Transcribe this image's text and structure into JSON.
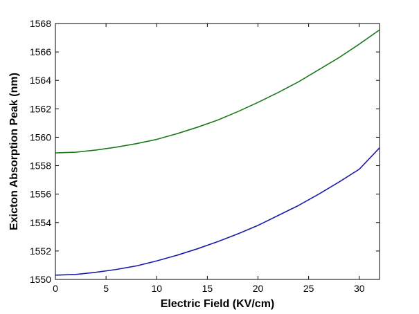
{
  "chart_data": {
    "type": "line",
    "title": "",
    "xlabel": "Electric Field (KV/cm)",
    "ylabel": "Exicton Absorption Peak (nm)",
    "xlim": [
      0,
      32
    ],
    "ylim": [
      1550,
      1568
    ],
    "xticks": [
      0,
      5,
      10,
      15,
      20,
      25,
      30
    ],
    "yticks": [
      1550,
      1552,
      1554,
      1556,
      1558,
      1560,
      1562,
      1564,
      1566,
      1568
    ],
    "grid": false,
    "legend": "none",
    "series": [
      {
        "color": "#1a7a1a",
        "x": [
          0,
          2,
          4,
          6,
          8,
          10,
          12,
          14,
          16,
          18,
          20,
          22,
          24,
          26,
          28,
          30,
          32
        ],
        "values": [
          1558.9,
          1558.95,
          1559.1,
          1559.3,
          1559.55,
          1559.85,
          1560.25,
          1560.7,
          1561.2,
          1561.8,
          1562.45,
          1563.15,
          1563.9,
          1564.75,
          1565.6,
          1566.55,
          1567.55
        ]
      },
      {
        "color": "#1a1aaa",
        "x": [
          0,
          2,
          4,
          6,
          8,
          10,
          12,
          14,
          16,
          18,
          20,
          22,
          24,
          26,
          28,
          30,
          32
        ],
        "values": [
          1550.3,
          1550.35,
          1550.5,
          1550.7,
          1550.95,
          1551.3,
          1551.7,
          1552.15,
          1552.65,
          1553.2,
          1553.8,
          1554.5,
          1555.2,
          1556.0,
          1556.85,
          1557.75,
          1559.25
        ]
      }
    ]
  }
}
